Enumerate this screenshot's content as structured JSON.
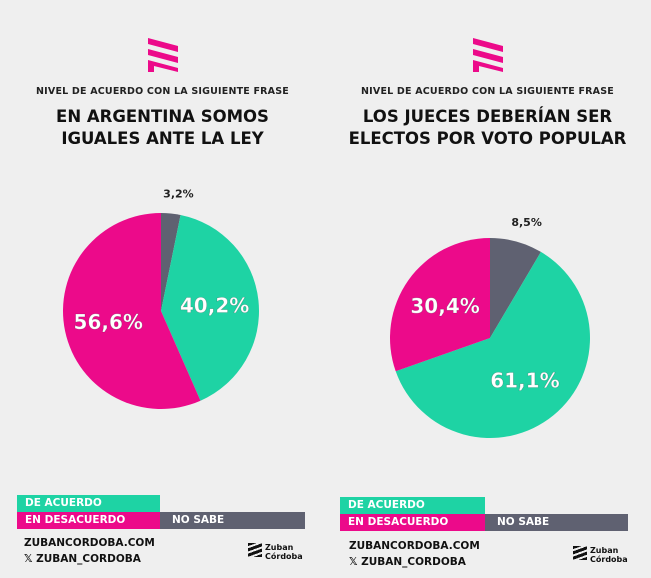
{
  "colors": {
    "agree": "#1ed3a4",
    "disagree": "#ec0a8a",
    "unknown": "#5f6171"
  },
  "chart_data": [
    {
      "type": "pie",
      "subtitle": "NIVEL DE ACUERDO CON LA SIGUIENTE FRASE",
      "title_lines": [
        "EN ARGENTINA SOMOS",
        "IGUALES ANTE LA LEY"
      ],
      "slices": [
        {
          "label": "NO SABE",
          "value": 3.2,
          "text": "3,2%"
        },
        {
          "label": "DE ACUERDO",
          "value": 40.2,
          "text": "40,2%"
        },
        {
          "label": "EN DESACUERDO",
          "value": 56.6,
          "text": "56,6%"
        }
      ]
    },
    {
      "type": "pie",
      "subtitle": "NIVEL DE ACUERDO CON LA SIGUIENTE FRASE",
      "title_lines": [
        "LOS JUECES DEBERÍAN SER",
        "ELECTOS POR VOTO POPULAR"
      ],
      "slices": [
        {
          "label": "NO SABE",
          "value": 8.5,
          "text": "8,5%"
        },
        {
          "label": "DE ACUERDO",
          "value": 61.1,
          "text": "61,1%"
        },
        {
          "label": "EN DESACUERDO",
          "value": 30.4,
          "text": "30,4%"
        }
      ]
    }
  ],
  "legend": {
    "agree": "DE ACUERDO",
    "disagree": "EN DESACUERDO",
    "unknown": "NO SABE"
  },
  "footer": {
    "web": "ZUBANCORDOBA.COM",
    "social": "𝕏 ZUBAN_CORDOBA",
    "brand1": "Zuban",
    "brand2": "Córdoba"
  }
}
